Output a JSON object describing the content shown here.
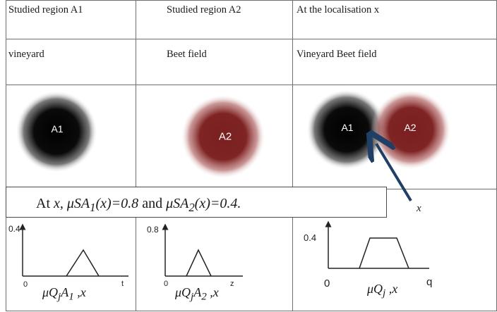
{
  "table": {
    "header": [
      "Studied region A1",
      "Studied region A2",
      "At the localisation  x"
    ],
    "land_use": [
      "vineyard",
      "Beet field",
      "Vineyard Beet field"
    ]
  },
  "regions": {
    "a1_label": "A1",
    "a2_label": "A2",
    "colors": {
      "a1": "#050505",
      "a2": "#7a1f1f",
      "arrow": "#1f3f66",
      "grid": "#6e6e6e"
    }
  },
  "point": {
    "label": "x"
  },
  "statement": {
    "prefix": "At ",
    "x": "x, ",
    "mu1": "μSA",
    "sub1": "1",
    "eq1": "(x)=0.8",
    "and": " and ",
    "mu2": "μSA",
    "sub2": "2",
    "eq2": "(x)=0.4."
  },
  "plots": [
    {
      "y_label": "0.4",
      "origin": "0",
      "x_end": "t",
      "caption": {
        "mu": "μQ",
        "j": "j",
        "a": "A",
        "sub": "1",
        "tail": " ,x"
      }
    },
    {
      "y_label": "0.8",
      "origin": "0",
      "x_end": "z",
      "caption": {
        "mu": "μQ",
        "j": "j",
        "a": "A",
        "sub": "2",
        "tail": " ,x"
      }
    },
    {
      "y_label": "0.4",
      "origin": "0",
      "x_end": "q",
      "caption": {
        "mu": "μQ",
        "j": "j",
        "tail": " ,x"
      }
    }
  ]
}
